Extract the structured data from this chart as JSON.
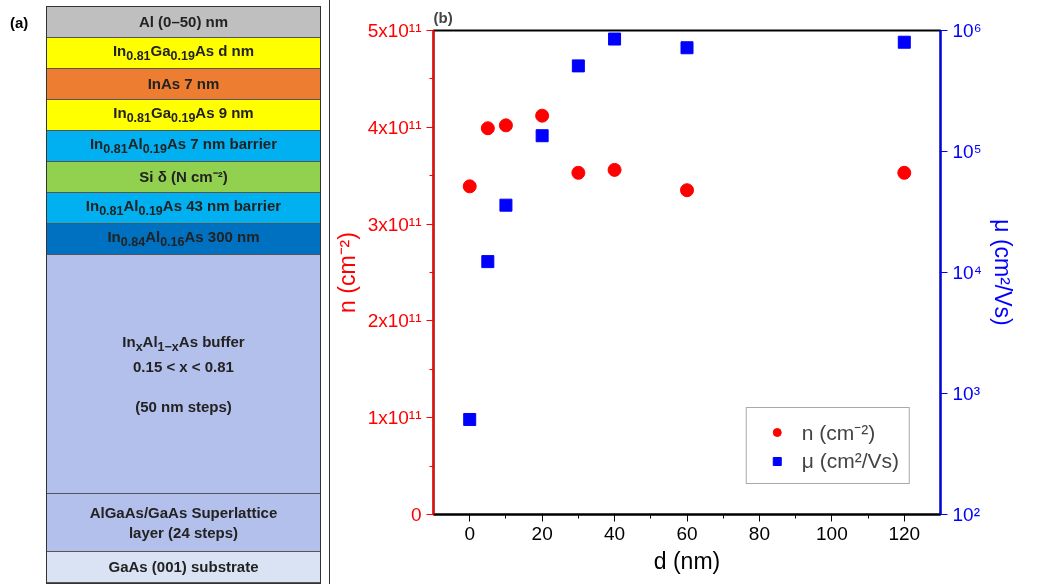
{
  "chart_data": [
    {
      "type": "other",
      "title": "(a)",
      "categories": [
        "Al (0–50) nm",
        "In$_{0.81}$Ga$_{0.19}$As d nm",
        "InAs 7 nm",
        "In$_{0.81}$Ga$_{0.19}$As 9 nm",
        "In$_{0.81}$Al$_{0.19}$As 7 nm barrier",
        "Si δ (N cm⁻²)",
        "In$_{0.81}$Al$_{0.19}$As 43 nm barrier",
        "In$_{0.84}$Al$_{0.16}$As 300 nm",
        "In$_{x}$Al$_{1−x}$As buffer\n0.15 < x < 0.81\n\n(50 nm steps)",
        "AlGaAs/GaAs Superlattice\nlayer (24 steps)",
        "GaAs (001) substrate"
      ],
      "colors": [
        "#bfbfbf",
        "#ffff00",
        "#ed7d31",
        "#ffff00",
        "#00b0f0",
        "#92d050",
        "#00b0f0",
        "#0070c0",
        "#b4c0ec",
        "#b4c0ec",
        "#dae3f3"
      ]
    },
    {
      "type": "scatter",
      "title": "(b)",
      "xlabel": "d (nm)",
      "ylabel": "n (cm⁻²)",
      "y2label": "μ (cm²/Vs)",
      "x": [
        0,
        5,
        10,
        20,
        30,
        40,
        60,
        120
      ],
      "series": [
        {
          "name": "n (cm⁻²)",
          "color": "#ff0000",
          "marker": "circle",
          "values": [
            339000000000.0,
            399000000000.0,
            402000000000.0,
            412000000000.0,
            353000000000.0,
            356000000000.0,
            335000000000.0,
            353000000000.0
          ]
        },
        {
          "name": "μ (cm²/Vs)",
          "color": "#0000ff",
          "marker": "square",
          "axis": "y2",
          "values": [
            610,
            12300,
            36000,
            135000,
            510000,
            850000,
            720000,
            800000
          ]
        }
      ],
      "xlim": [
        -10,
        130
      ],
      "xticks": [
        0,
        20,
        40,
        60,
        80,
        100,
        120
      ],
      "ylim": [
        0,
        500000000000.0
      ],
      "yticks": [
        0,
        {
          "value": 100000000000.0,
          "label": "1x10¹¹"
        },
        {
          "value": 200000000000.0,
          "label": "2x10¹¹"
        },
        {
          "value": 300000000000.0,
          "label": "3x10¹¹"
        },
        {
          "value": 400000000000.0,
          "label": "4x10¹¹"
        },
        {
          "value": 500000000000.0,
          "label": "5x10¹¹"
        }
      ],
      "y2lim": [
        100,
        1000000
      ],
      "y2ticks": [
        {
          "value": 100,
          "label": "10²"
        },
        {
          "value": 1000,
          "label": "10³"
        },
        {
          "value": 10000,
          "label": "10⁴"
        },
        {
          "value": 100000,
          "label": "10⁵"
        },
        {
          "value": 1000000,
          "label": "10⁶"
        }
      ],
      "log": "y2",
      "grid": false,
      "legend": "bottom right"
    }
  ]
}
